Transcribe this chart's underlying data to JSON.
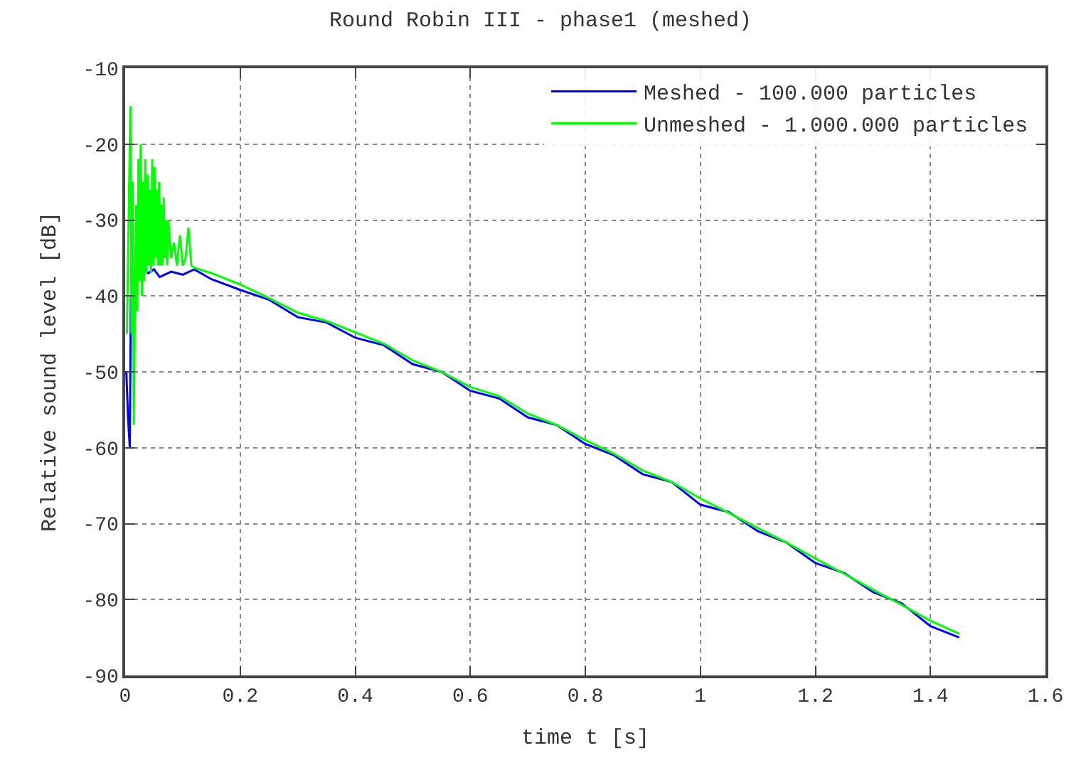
{
  "chart_data": {
    "type": "line",
    "title": "Round Robin III - phase1 (meshed)",
    "xlabel": "time t [s]",
    "ylabel": "Relative sound level [dB]",
    "xlim": [
      0,
      1.6
    ],
    "xticks": [
      0,
      0.2,
      0.4,
      0.6,
      0.8,
      1,
      1.2,
      1.4,
      1.6
    ],
    "ylim": [
      -90,
      -10
    ],
    "yticks": [
      -90,
      -80,
      -70,
      -60,
      -50,
      -40,
      -30,
      -20,
      -10
    ],
    "grid": true,
    "legend": "top right",
    "marker": "none",
    "line_style": "solid",
    "series": [
      {
        "name": "Meshed - 100.000 particles",
        "color": "#0000ff",
        "x": [
          0.002,
          0.005,
          0.008,
          0.01,
          0.012,
          0.015,
          0.02,
          0.025,
          0.03,
          0.04,
          0.05,
          0.06,
          0.08,
          0.1,
          0.12,
          0.15,
          0.2,
          0.25,
          0.3,
          0.35,
          0.4,
          0.45,
          0.5,
          0.55,
          0.6,
          0.65,
          0.7,
          0.75,
          0.8,
          0.85,
          0.9,
          0.95,
          1.0,
          1.05,
          1.1,
          1.15,
          1.2,
          1.25,
          1.3,
          1.35,
          1.4,
          1.45
        ],
        "values": [
          -50,
          -56,
          -60,
          -40,
          -45,
          null,
          null,
          null,
          -36.5,
          -37,
          -36.5,
          -37.5,
          -36.8,
          -37.2,
          -36.5,
          -37.8,
          -39.2,
          -40.5,
          -42.8,
          -43.5,
          -45.5,
          -46.5,
          -49,
          -50,
          -52.5,
          -53.5,
          -56,
          -57,
          -59.5,
          -61,
          -63.5,
          -64.5,
          -67.5,
          -68.5,
          -71,
          -72.5,
          -75.2,
          -76.5,
          -79,
          -80.5,
          -83.5,
          -85
        ]
      },
      {
        "name": "Unmeshed - 1.000.000 particles",
        "color": "#00ff00",
        "x": [
          0.003,
          0.006,
          0.009,
          0.011,
          0.013,
          0.015,
          0.017,
          0.019,
          0.021,
          0.023,
          0.025,
          0.027,
          0.029,
          0.031,
          0.033,
          0.035,
          0.037,
          0.039,
          0.041,
          0.043,
          0.045,
          0.047,
          0.049,
          0.051,
          0.053,
          0.055,
          0.057,
          0.059,
          0.061,
          0.063,
          0.065,
          0.067,
          0.069,
          0.071,
          0.073,
          0.075,
          0.08,
          0.085,
          0.09,
          0.095,
          0.1,
          0.105,
          0.11,
          0.115,
          0.12,
          0.15,
          0.2,
          0.25,
          0.3,
          0.35,
          0.4,
          0.45,
          0.5,
          0.55,
          0.6,
          0.65,
          0.7,
          0.75,
          0.8,
          0.85,
          0.9,
          0.95,
          1.0,
          1.05,
          1.1,
          1.15,
          1.2,
          1.25,
          1.3,
          1.35,
          1.4,
          1.45
        ],
        "values": [
          -45,
          -30,
          -15,
          -45,
          -25,
          -57,
          -40,
          -28,
          -42,
          -22,
          -38,
          -20,
          -40,
          -25,
          -38,
          -22,
          -37,
          -24,
          -36,
          -26,
          -37,
          -22,
          -36,
          -23,
          -35,
          -26,
          -36,
          -25,
          -36,
          -28,
          -36,
          -27,
          -35,
          -30,
          -36,
          -30,
          -35,
          -33,
          -36,
          -32,
          -36,
          -35,
          -31,
          -36,
          -36.3,
          -37,
          -38.5,
          -40.3,
          -42.2,
          -43.3,
          -44.8,
          -46.3,
          -48.5,
          -50,
          -52,
          -53.2,
          -55.5,
          -57,
          -59,
          -60.8,
          -63,
          -64.5,
          -66.7,
          -68.6,
          -70.6,
          -72.5,
          -74.6,
          -76.6,
          -78.7,
          -80.7,
          -82.8,
          -84.5
        ]
      }
    ]
  }
}
